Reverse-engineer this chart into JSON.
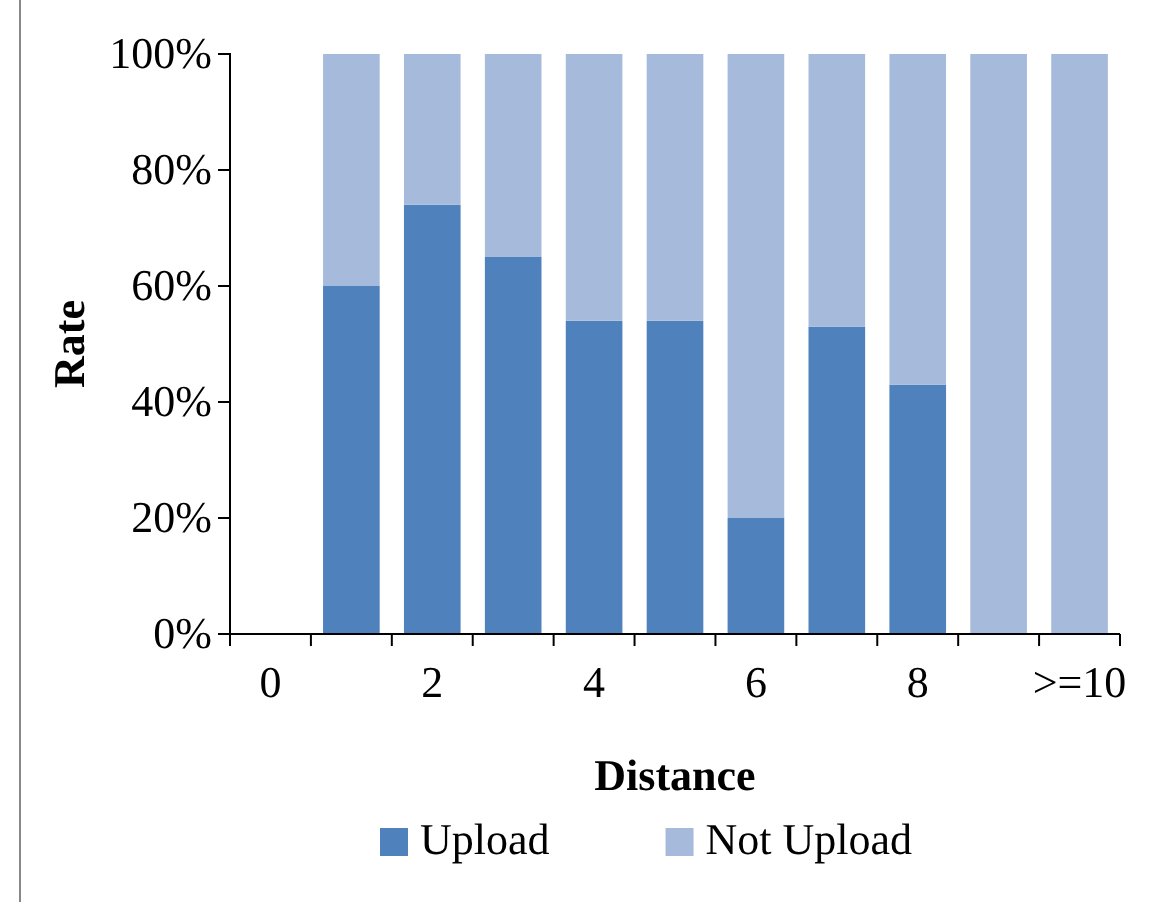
{
  "chart_data": {
    "type": "bar",
    "stacked": true,
    "xlabel": "Distance",
    "ylabel": "Rate",
    "categories": [
      "0",
      null,
      "2",
      null,
      "4",
      null,
      "6",
      null,
      "8",
      null,
      ">=10"
    ],
    "series": [
      {
        "name": "Upload",
        "color": "#4f81bd",
        "values": [
          null,
          60,
          74,
          65,
          54,
          54,
          20,
          53,
          43,
          0,
          0
        ]
      },
      {
        "name": "Not Upload",
        "color": "#a6bbdc",
        "values": [
          null,
          40,
          26,
          35,
          46,
          46,
          80,
          47,
          57,
          100,
          100
        ]
      }
    ],
    "ylim": [
      0,
      100
    ],
    "yticks": [
      {
        "value": 0,
        "label": "0%"
      },
      {
        "value": 20,
        "label": "20%"
      },
      {
        "value": 40,
        "label": "40%"
      },
      {
        "value": 60,
        "label": "60%"
      },
      {
        "value": 80,
        "label": "80%"
      },
      {
        "value": 100,
        "label": "100%"
      }
    ],
    "grid": false,
    "legend": "bottom"
  }
}
